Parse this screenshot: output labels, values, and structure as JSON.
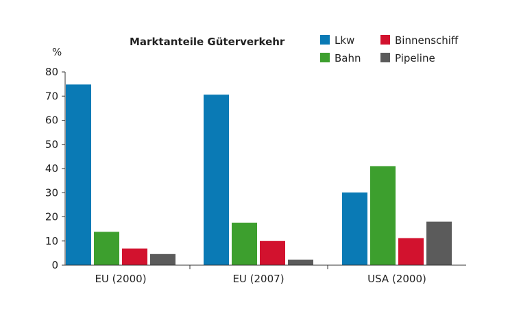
{
  "chart_data": {
    "type": "bar",
    "title": "Marktanteile Güterverkehr",
    "ylabel": "%",
    "xlabel": "",
    "ylim": [
      0,
      80
    ],
    "yticks": [
      0,
      10,
      20,
      30,
      40,
      50,
      60,
      70,
      80
    ],
    "categories": [
      "EU (2000)",
      "EU (2007)",
      "USA (2000)"
    ],
    "series": [
      {
        "name": "Lkw",
        "color": "#0a7ab5",
        "values": [
          74.8,
          70.6,
          30.1
        ]
      },
      {
        "name": "Bahn",
        "color": "#3d9f2e",
        "values": [
          13.8,
          17.6,
          41.0
        ]
      },
      {
        "name": "Binnenschiff",
        "color": "#d2122e",
        "values": [
          6.9,
          10.0,
          11.2
        ]
      },
      {
        "name": "Pipeline",
        "color": "#5b5b5b",
        "values": [
          4.6,
          2.3,
          18.0
        ]
      }
    ],
    "legend_position": "top-right",
    "grid": false
  }
}
